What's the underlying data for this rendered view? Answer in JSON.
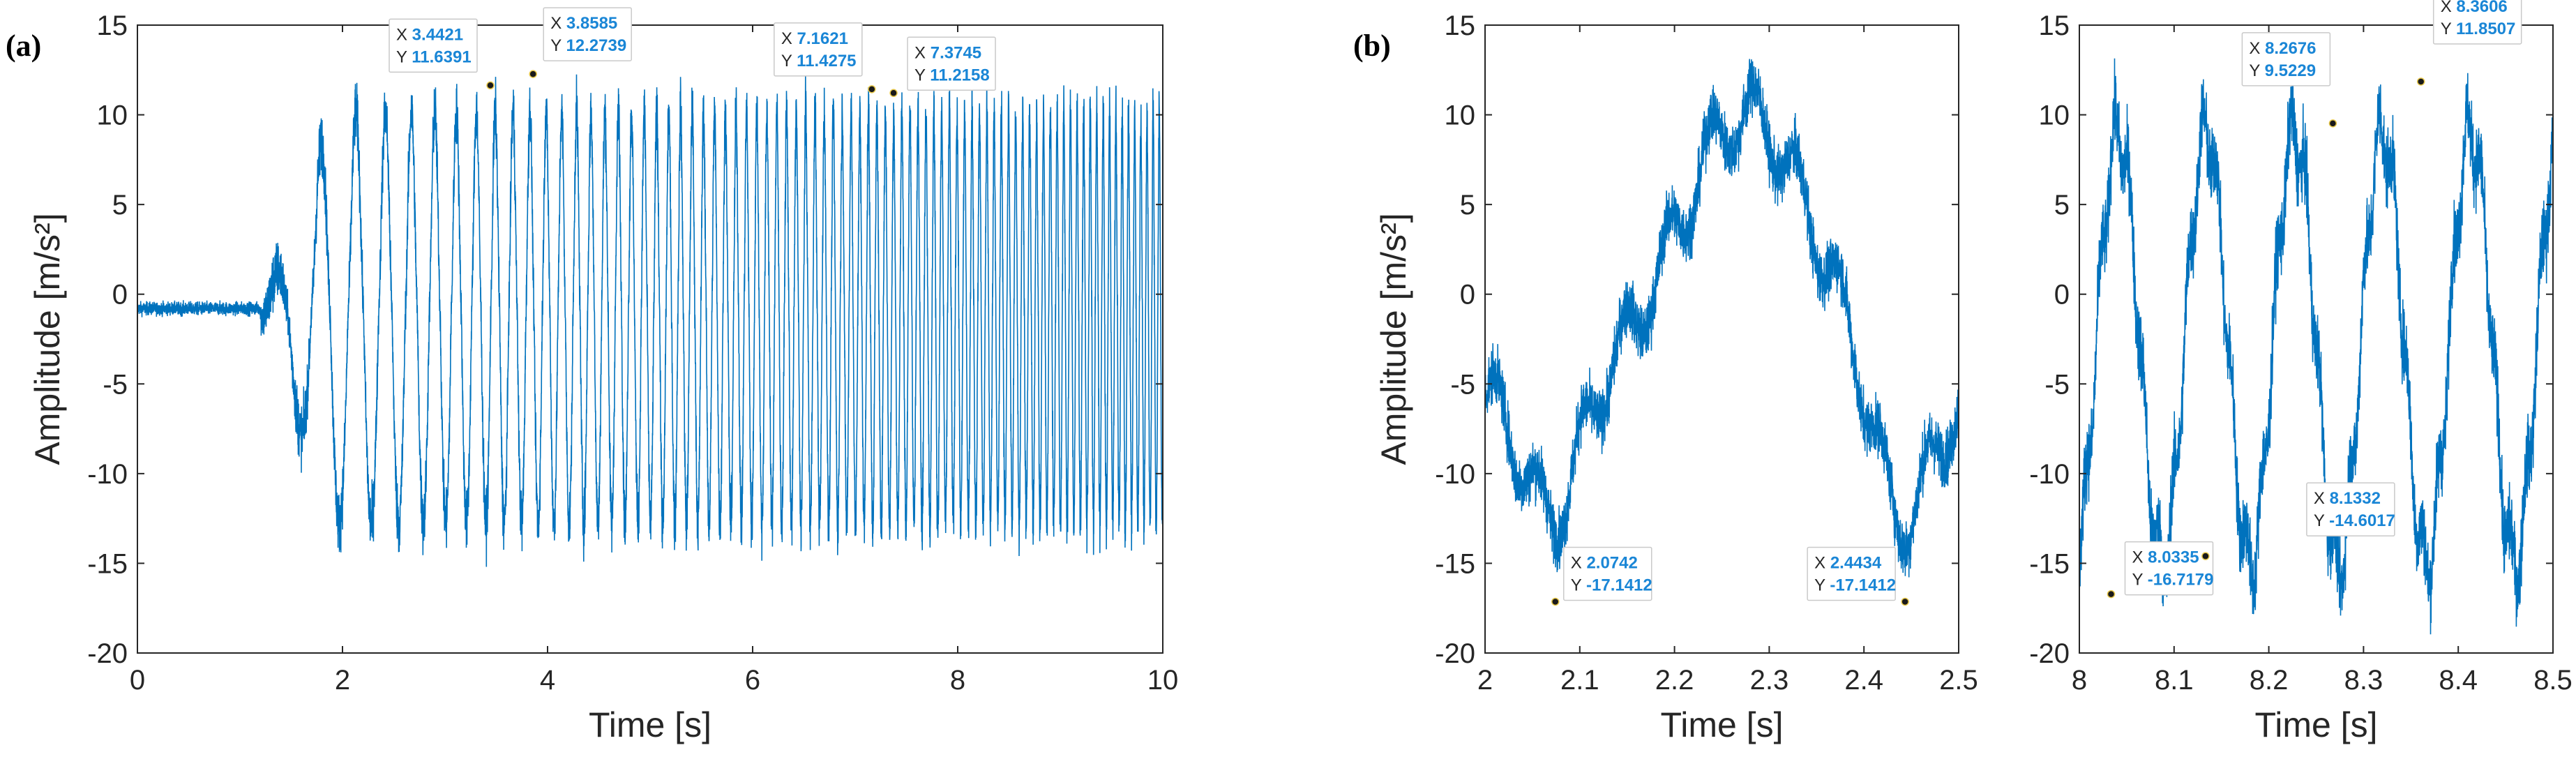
{
  "figure": {
    "panel_labels": [
      "(a)",
      "(b)"
    ],
    "series_color": "#0072BD"
  },
  "chart_data": [
    {
      "id": "a",
      "type": "line",
      "panel_label": "(a)",
      "xlabel": "Time [s]",
      "ylabel": "Amplitude [m/s²]",
      "xlim": [
        0,
        10
      ],
      "ylim": [
        -20,
        15
      ],
      "xticks": [
        0,
        2,
        4,
        6,
        8,
        10
      ],
      "yticks": [
        -20,
        -15,
        -10,
        -5,
        0,
        5,
        10,
        15
      ],
      "signal": {
        "kind": "sweep",
        "noise_before_onset": 0.35,
        "onset_s": 1.2,
        "baseline": -0.8
      },
      "datatips": [
        {
          "x": 3.4421,
          "y": 11.6391
        },
        {
          "x": 3.8585,
          "y": 12.2739
        },
        {
          "x": 7.1621,
          "y": 11.4275
        },
        {
          "x": 7.3745,
          "y": 11.2158
        }
      ]
    },
    {
      "id": "b1",
      "type": "line",
      "panel_label": "(b)",
      "xlabel": "Time [s]",
      "ylabel": "Amplitude [m/s²]",
      "xlim": [
        2,
        2.5
      ],
      "ylim": [
        -20,
        15
      ],
      "xticks": [
        2,
        2.1,
        2.2,
        2.3,
        2.4,
        2.5
      ],
      "yticks": [
        -20,
        -15,
        -10,
        -5,
        0,
        5,
        10,
        15
      ],
      "signal": {
        "kind": "slow-wave"
      },
      "datatips": [
        {
          "x": 2.0742,
          "y": -17.1412
        },
        {
          "x": 2.4434,
          "y": -17.1412
        }
      ]
    },
    {
      "id": "b2",
      "type": "line",
      "panel_label": "",
      "xlabel": "Time [s]",
      "ylabel": "",
      "xlim": [
        8,
        8.5
      ],
      "ylim": [
        -20,
        15
      ],
      "xticks": [
        8,
        8.1,
        8.2,
        8.3,
        8.4,
        8.5
      ],
      "yticks": [
        -20,
        -15,
        -10,
        -5,
        0,
        5,
        10,
        15
      ],
      "signal": {
        "kind": "fast-wave",
        "period_s": 0.093
      },
      "datatips": [
        {
          "x": 8.0335,
          "y": -16.7179
        },
        {
          "x": 8.1332,
          "y": -14.6017
        },
        {
          "x": 8.2676,
          "y": 9.5229
        },
        {
          "x": 8.3606,
          "y": 11.8507
        }
      ]
    }
  ]
}
